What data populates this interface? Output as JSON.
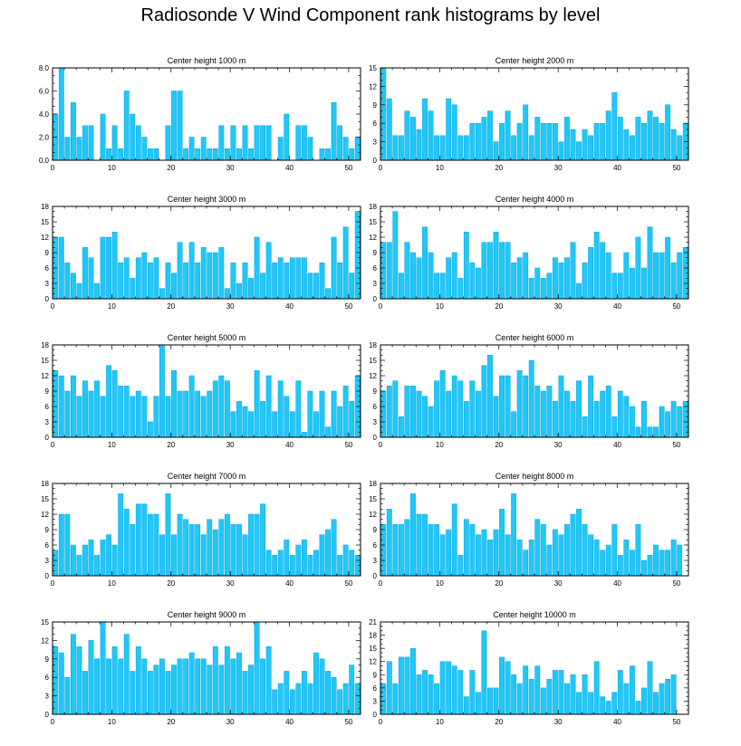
{
  "title": "Radiosonde V Wind Component rank histograms by level",
  "colors": {
    "bar": "#1ec8fa",
    "bar_edge": "#0b9fd0",
    "axis": "#000000"
  },
  "chart_data": [
    {
      "type": "bar",
      "title": "Center height 1000 m",
      "xlim": [
        0,
        52
      ],
      "xticks": [
        0,
        10,
        20,
        30,
        40,
        50
      ],
      "ylim": [
        0,
        8
      ],
      "yticks": [
        0.0,
        2.0,
        4.0,
        6.0,
        8.0
      ],
      "ytick_labels": [
        "0.0",
        "2.0",
        "4.0",
        "6.0",
        "8.0"
      ],
      "values": [
        4,
        8,
        2,
        5,
        2,
        3,
        3,
        0,
        4,
        1,
        3,
        1,
        6,
        4,
        3,
        2,
        1,
        1,
        0,
        3,
        6,
        6,
        1,
        2,
        1,
        2,
        1,
        1,
        3,
        1,
        3,
        1,
        3,
        1,
        3,
        3,
        3,
        0,
        2,
        4,
        0,
        3,
        3,
        2,
        0,
        1,
        1,
        5,
        3,
        2,
        1,
        2
      ]
    },
    {
      "type": "bar",
      "title": "Center height 2000 m",
      "xlim": [
        0,
        52
      ],
      "xticks": [
        0,
        10,
        20,
        30,
        40,
        50
      ],
      "ylim": [
        0,
        15
      ],
      "yticks": [
        0,
        3,
        6,
        9,
        12,
        15
      ],
      "ytick_labels": [
        "0",
        "3",
        "6",
        "9",
        "12",
        "15"
      ],
      "values": [
        15,
        10,
        4,
        4,
        8,
        7,
        5,
        10,
        8,
        4,
        4,
        10,
        9,
        4,
        4,
        6,
        6,
        7,
        8,
        3,
        6,
        8,
        4,
        6,
        9,
        4,
        7,
        6,
        6,
        6,
        3,
        7,
        5,
        3,
        5,
        4,
        6,
        6,
        8,
        11,
        7,
        5,
        4,
        7,
        6,
        8,
        7,
        6,
        9,
        5,
        4,
        6
      ]
    },
    {
      "type": "bar",
      "title": "Center height 3000 m",
      "xlim": [
        0,
        52
      ],
      "xticks": [
        0,
        10,
        20,
        30,
        40,
        50
      ],
      "ylim": [
        0,
        18
      ],
      "yticks": [
        0,
        3,
        6,
        9,
        12,
        15,
        18
      ],
      "ytick_labels": [
        "0",
        "3",
        "6",
        "9",
        "12",
        "15",
        "18"
      ],
      "values": [
        12,
        12,
        7,
        5,
        3,
        10,
        8,
        3,
        12,
        12,
        13,
        7,
        8,
        4,
        8,
        9,
        7,
        8,
        2,
        7,
        5,
        11,
        7,
        11,
        7,
        10,
        9,
        9,
        10,
        2,
        7,
        3,
        7,
        4,
        12,
        5,
        11,
        7,
        8,
        7,
        8,
        8,
        8,
        5,
        5,
        7,
        2,
        12,
        7,
        14,
        5,
        17
      ]
    },
    {
      "type": "bar",
      "title": "Center height 4000 m",
      "xlim": [
        0,
        52
      ],
      "xticks": [
        0,
        10,
        20,
        30,
        40,
        50
      ],
      "ylim": [
        0,
        18
      ],
      "yticks": [
        0,
        3,
        6,
        9,
        12,
        15,
        18
      ],
      "ytick_labels": [
        "0",
        "3",
        "6",
        "9",
        "12",
        "15",
        "18"
      ],
      "values": [
        11,
        11,
        17,
        5,
        11,
        9,
        8,
        14,
        9,
        5,
        5,
        8,
        9,
        4,
        13,
        7,
        6,
        11,
        11,
        13,
        11,
        11,
        7,
        8,
        9,
        4,
        6,
        4,
        5,
        8,
        7,
        8,
        11,
        3,
        7,
        10,
        13,
        11,
        9,
        5,
        5,
        9,
        6,
        12,
        6,
        14,
        9,
        9,
        12,
        7,
        9,
        10
      ]
    },
    {
      "type": "bar",
      "title": "Center height 5000 m",
      "xlim": [
        0,
        52
      ],
      "xticks": [
        0,
        10,
        20,
        30,
        40,
        50
      ],
      "ylim": [
        0,
        18
      ],
      "yticks": [
        0,
        3,
        6,
        9,
        12,
        15,
        18
      ],
      "ytick_labels": [
        "0",
        "3",
        "6",
        "9",
        "12",
        "15",
        "18"
      ],
      "values": [
        13,
        12,
        9,
        12,
        8,
        11,
        9,
        11,
        8,
        14,
        13,
        10,
        10,
        8,
        9,
        8,
        3,
        8,
        18,
        8,
        13,
        9,
        9,
        12,
        9,
        8,
        9,
        11,
        12,
        11,
        5,
        7,
        6,
        5,
        13,
        7,
        12,
        5,
        11,
        8,
        5,
        11,
        1,
        9,
        5,
        9,
        2,
        9,
        6,
        10,
        7,
        12
      ]
    },
    {
      "type": "bar",
      "title": "Center height 6000 m",
      "xlim": [
        0,
        52
      ],
      "xticks": [
        0,
        10,
        20,
        30,
        40,
        50
      ],
      "ylim": [
        0,
        18
      ],
      "yticks": [
        0,
        3,
        6,
        9,
        12,
        15,
        18
      ],
      "ytick_labels": [
        "0",
        "3",
        "6",
        "9",
        "12",
        "15",
        "18"
      ],
      "values": [
        9,
        10,
        11,
        4,
        10,
        10,
        9,
        8,
        6,
        11,
        13,
        9,
        12,
        11,
        7,
        11,
        9,
        14,
        16,
        8,
        12,
        12,
        5,
        13,
        12,
        15,
        10,
        9,
        10,
        7,
        12,
        9,
        7,
        11,
        4,
        12,
        7,
        9,
        10,
        4,
        9,
        8,
        6,
        2,
        7,
        2,
        2,
        6,
        5,
        7,
        6,
        7
      ]
    },
    {
      "type": "bar",
      "title": "Center height 7000 m",
      "xlim": [
        0,
        52
      ],
      "xticks": [
        0,
        10,
        20,
        30,
        40,
        50
      ],
      "ylim": [
        0,
        18
      ],
      "yticks": [
        0,
        3,
        6,
        9,
        12,
        15,
        18
      ],
      "ytick_labels": [
        "0",
        "3",
        "6",
        "9",
        "12",
        "15",
        "18"
      ],
      "values": [
        5,
        12,
        12,
        6,
        4,
        6,
        7,
        4,
        7,
        8,
        6,
        16,
        13,
        10,
        14,
        14,
        12,
        12,
        8,
        16,
        8,
        12,
        11,
        10,
        10,
        8,
        11,
        9,
        11,
        12,
        10,
        10,
        8,
        12,
        12,
        14,
        5,
        4,
        5,
        7,
        4,
        6,
        7,
        4,
        5,
        8,
        9,
        11,
        4,
        6,
        5,
        4
      ]
    },
    {
      "type": "bar",
      "title": "Center height 8000 m",
      "xlim": [
        0,
        52
      ],
      "xticks": [
        0,
        10,
        20,
        30,
        40,
        50
      ],
      "ylim": [
        0,
        18
      ],
      "yticks": [
        0,
        3,
        6,
        9,
        12,
        15,
        18
      ],
      "ytick_labels": [
        "0",
        "3",
        "6",
        "9",
        "12",
        "15",
        "18"
      ],
      "values": [
        10,
        13,
        10,
        10,
        11,
        16,
        12,
        12,
        10,
        10,
        8,
        9,
        14,
        4,
        11,
        10,
        8,
        9,
        7,
        9,
        13,
        8,
        16,
        7,
        5,
        7,
        11,
        10,
        6,
        9,
        8,
        10,
        12,
        13,
        10,
        8,
        7,
        5,
        6,
        10,
        4,
        7,
        5,
        10,
        3,
        4,
        6,
        5,
        5,
        7,
        6
      ]
    },
    {
      "type": "bar",
      "title": "Center height 9000 m",
      "xlim": [
        0,
        52
      ],
      "xticks": [
        0,
        10,
        20,
        30,
        40,
        50
      ],
      "ylim": [
        0,
        15
      ],
      "yticks": [
        0,
        3,
        6,
        9,
        12,
        15
      ],
      "ytick_labels": [
        "0",
        "3",
        "6",
        "9",
        "12",
        "15"
      ],
      "values": [
        11,
        10,
        6,
        13,
        11,
        7,
        12,
        9,
        15,
        9,
        11,
        9,
        13,
        7,
        11,
        9,
        7,
        8,
        9,
        7,
        8,
        9,
        9,
        10,
        9,
        9,
        8,
        11,
        8,
        11,
        9,
        10,
        7,
        8,
        15,
        9,
        11,
        4,
        5,
        7,
        4,
        5,
        7,
        5,
        10,
        9,
        7,
        6,
        4,
        5,
        8,
        5
      ]
    },
    {
      "type": "bar",
      "title": "Center height 10000 m",
      "xlim": [
        0,
        52
      ],
      "xticks": [
        0,
        10,
        20,
        30,
        40,
        50
      ],
      "ylim": [
        0,
        21
      ],
      "yticks": [
        0,
        3,
        6,
        9,
        12,
        15,
        18,
        21
      ],
      "ytick_labels": [
        "0",
        "3",
        "6",
        "9",
        "12",
        "15",
        "18",
        "21"
      ],
      "values": [
        7,
        12,
        7,
        13,
        13,
        15,
        9,
        10,
        9,
        7,
        12,
        12,
        11,
        10,
        4,
        10,
        5,
        19,
        6,
        6,
        13,
        12,
        9,
        7,
        11,
        8,
        11,
        6,
        8,
        10,
        10,
        7,
        9,
        5,
        9,
        5,
        12,
        4,
        3,
        5,
        10,
        7,
        11,
        3,
        6,
        12,
        5,
        7,
        8,
        9
      ]
    }
  ]
}
